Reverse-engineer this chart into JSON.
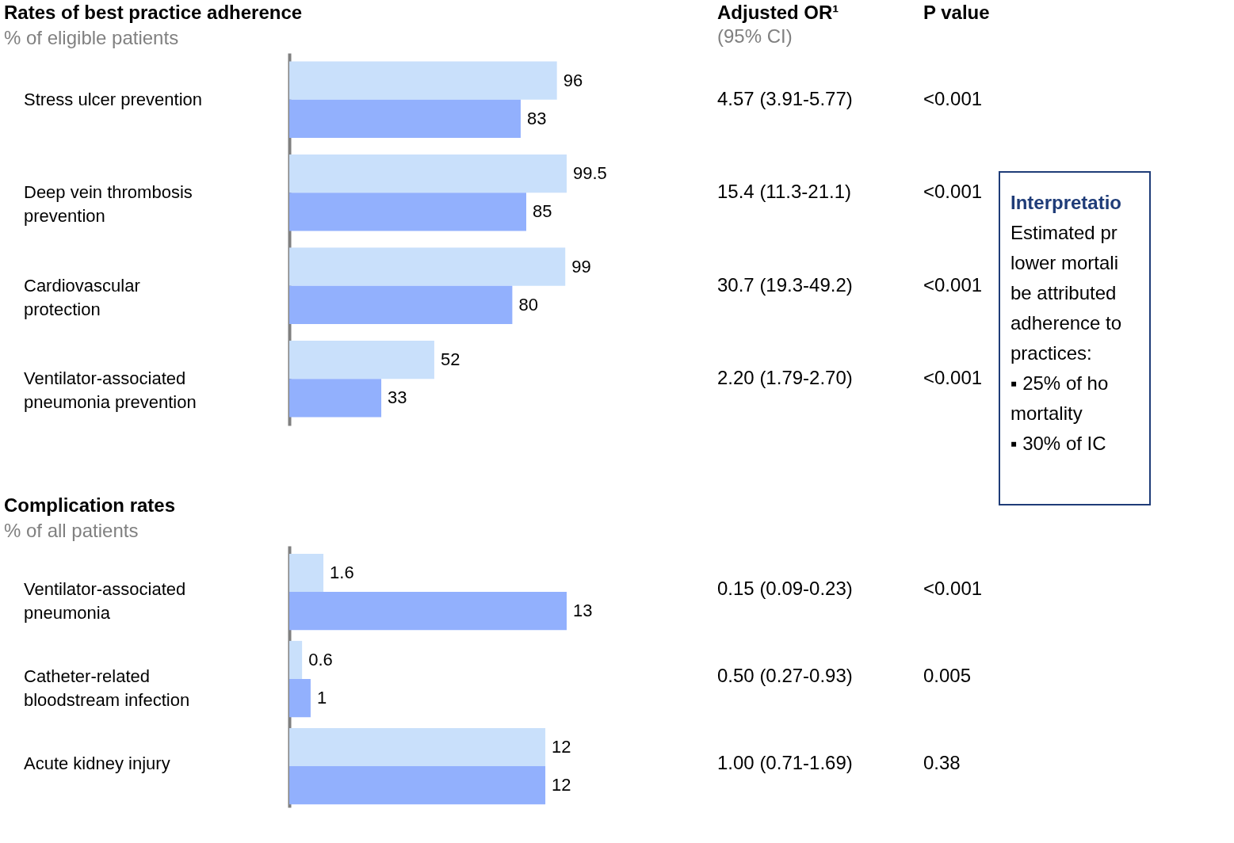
{
  "chart_data": [
    {
      "type": "bar",
      "orientation": "horizontal",
      "title": "Rates of best practice adherence",
      "subtitle": "% of eligible patients",
      "data_labels": true,
      "grid": false,
      "categories": [
        "Stress ulcer prevention",
        "Deep vein thrombosis prevention",
        "Cardiovascular protection",
        "Ventilator-associated pneumonia prevention"
      ],
      "series": [
        {
          "color": "#c9e0fb",
          "values": [
            96,
            99.5,
            99,
            52
          ]
        },
        {
          "color": "#92b0fd",
          "values": [
            83,
            85,
            80,
            33
          ]
        }
      ],
      "annotations": [
        "Adjusted OR¹",
        "(95% CI)",
        "P value",
        "4.57 (3.91-5.77)",
        "<0.001",
        "15.4 (11.3-21.1)",
        "<0.001",
        "30.7 (19.3-49.2)",
        "<0.001",
        "2.20 (1.79-2.70)",
        "<0.001"
      ]
    },
    {
      "type": "bar",
      "orientation": "horizontal",
      "title": "Complication rates",
      "subtitle": "% of all patients",
      "data_labels": true,
      "grid": false,
      "categories": [
        "Ventilator-associated pneumonia",
        "Catheter-related bloodstream infection",
        "Acute kidney injury"
      ],
      "series": [
        {
          "color": "#c9e0fb",
          "values": [
            1.6,
            0.6,
            12
          ]
        },
        {
          "color": "#92b0fd",
          "values": [
            13,
            1,
            12
          ]
        }
      ],
      "annotations": [
        "0.15 (0.09-0.23)",
        "<0.001",
        "0.50 (0.27-0.93)",
        "0.005",
        "1.00 (0.71-1.69)",
        "0.38"
      ]
    },
    {
      "type": "other",
      "title": "Interpretatio",
      "annotations": [
        "Estimated pr",
        "lower mortali",
        "be attributed",
        "adherence to",
        "practices:",
        "▪ 25% of ho",
        "mortality",
        "▪ 30% of IC"
      ]
    }
  ]
}
